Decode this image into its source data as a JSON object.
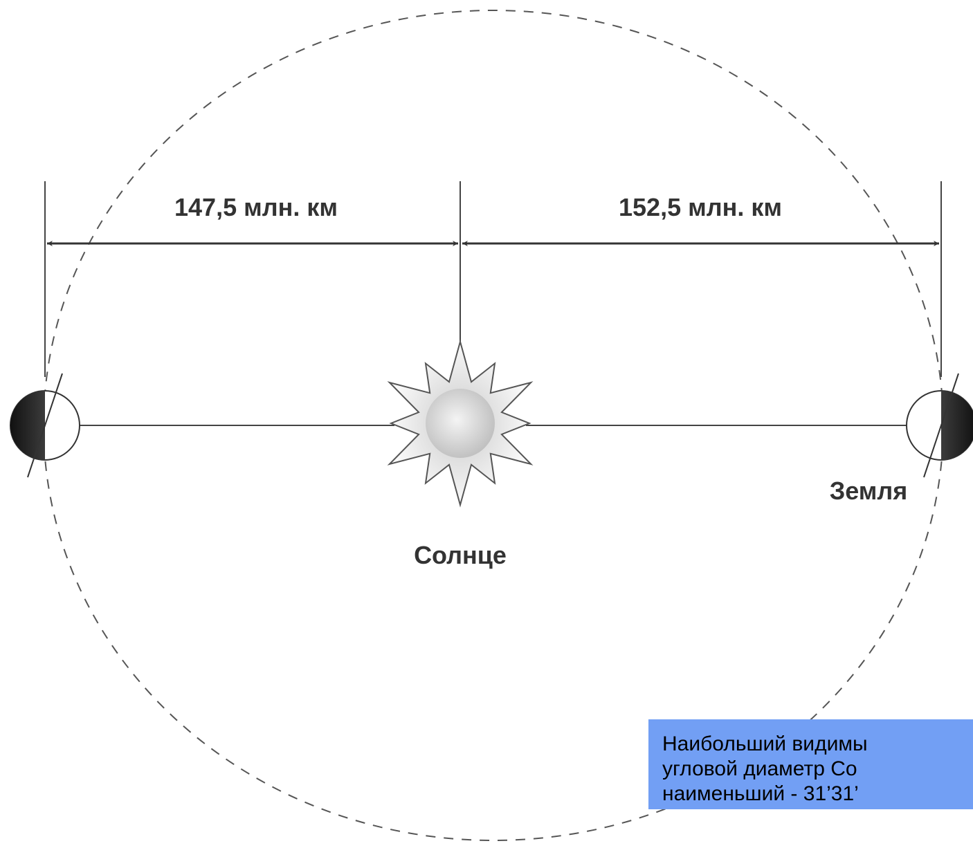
{
  "labels": {
    "perihelion": "147,5 млн. км",
    "aphelion": "152,5 млн. км",
    "sun": "Солнце",
    "earth": "Земля"
  },
  "note": {
    "lines": [
      "Наибольший видимы",
      "угловой диаметр Со",
      "наименьший - 31’31’"
    ]
  }
}
